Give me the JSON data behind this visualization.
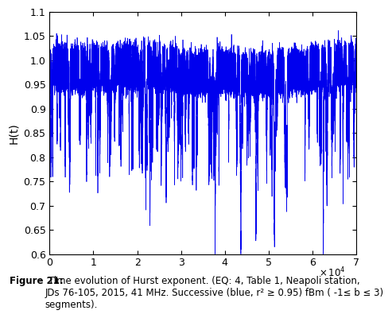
{
  "ylabel": "H(t)",
  "xlim": [
    0,
    70000
  ],
  "ylim": [
    0.6,
    1.1
  ],
  "yticks": [
    0.6,
    0.65,
    0.7,
    0.75,
    0.8,
    0.85,
    0.9,
    0.95,
    1.0,
    1.05,
    1.1
  ],
  "xticks": [
    0,
    10000,
    20000,
    30000,
    40000,
    50000,
    60000,
    70000
  ],
  "xtick_labels": [
    "0",
    "1",
    "2",
    "3",
    "4",
    "5",
    "6",
    "7"
  ],
  "line_color": "#0000EE",
  "line_width": 0.5,
  "n_points": 70000,
  "seed": 7,
  "caption_bold": "Figure 21:",
  "caption_rest": " Time evolution of Hurst exponent. (EQ: 4, Table 1, Neapoli station,\nJDs 76-105, 2015, 41 MHz. Successive (blue, r² ≥ 0.95) fBm ( -1≤ b ≤ 3)\nsegments).",
  "background_color": "#ffffff"
}
